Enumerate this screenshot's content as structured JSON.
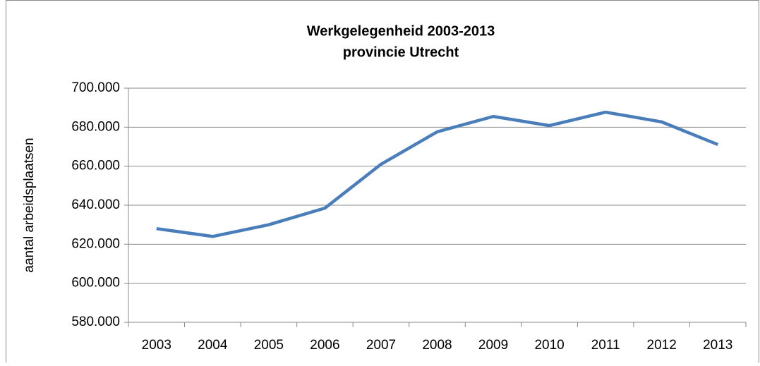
{
  "chart_data": {
    "type": "line",
    "title": "Werkgelegenheid 2003-2013",
    "subtitle": "provincie Utrecht",
    "y_label": "aantal arbeidsplaatsen",
    "categories": [
      "2003",
      "2004",
      "2005",
      "2006",
      "2007",
      "2008",
      "2009",
      "2010",
      "2011",
      "2012",
      "2013"
    ],
    "series": [
      {
        "name": "Werkgelegenheid",
        "color": "#4a7ebb",
        "values": [
          628000,
          624000,
          630000,
          638500,
          661000,
          677600,
          685500,
          680800,
          687700,
          682700,
          671100
        ]
      }
    ],
    "ylim": [
      580000,
      700000
    ],
    "yticks": [
      {
        "value": 580000,
        "label": "580.000"
      },
      {
        "value": 600000,
        "label": "600.000"
      },
      {
        "value": 620000,
        "label": "620.000"
      },
      {
        "value": 640000,
        "label": "640.000"
      },
      {
        "value": 660000,
        "label": "660.000"
      },
      {
        "value": 680000,
        "label": "680.000"
      },
      {
        "value": 700000,
        "label": "700.000"
      }
    ],
    "grid": true
  }
}
